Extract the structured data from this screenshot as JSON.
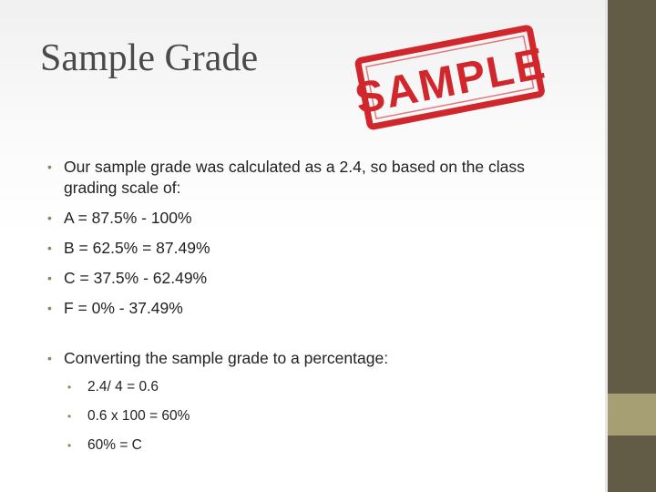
{
  "slide": {
    "title": "Sample Grade",
    "stamp_text": "SAMPLE",
    "colors": {
      "sidebar": "#625b45",
      "sidebar_accent": "#a59f73",
      "stamp_red": "#d0262c",
      "bullet": "#8a8560",
      "title_text": "#4a4a4a"
    },
    "bullets": [
      "Our sample grade was calculated as a 2.4, so based on the class grading scale of:",
      "A = 87.5% - 100%",
      "B = 62.5% = 87.49%",
      "C = 37.5% - 62.49%",
      "F = 0% - 37.49%"
    ],
    "bullet2": "Converting the sample grade to a percentage:",
    "sub_bullets": [
      "2.4/ 4 = 0.6",
      "0.6 x 100 = 60%",
      "60% = C"
    ]
  }
}
